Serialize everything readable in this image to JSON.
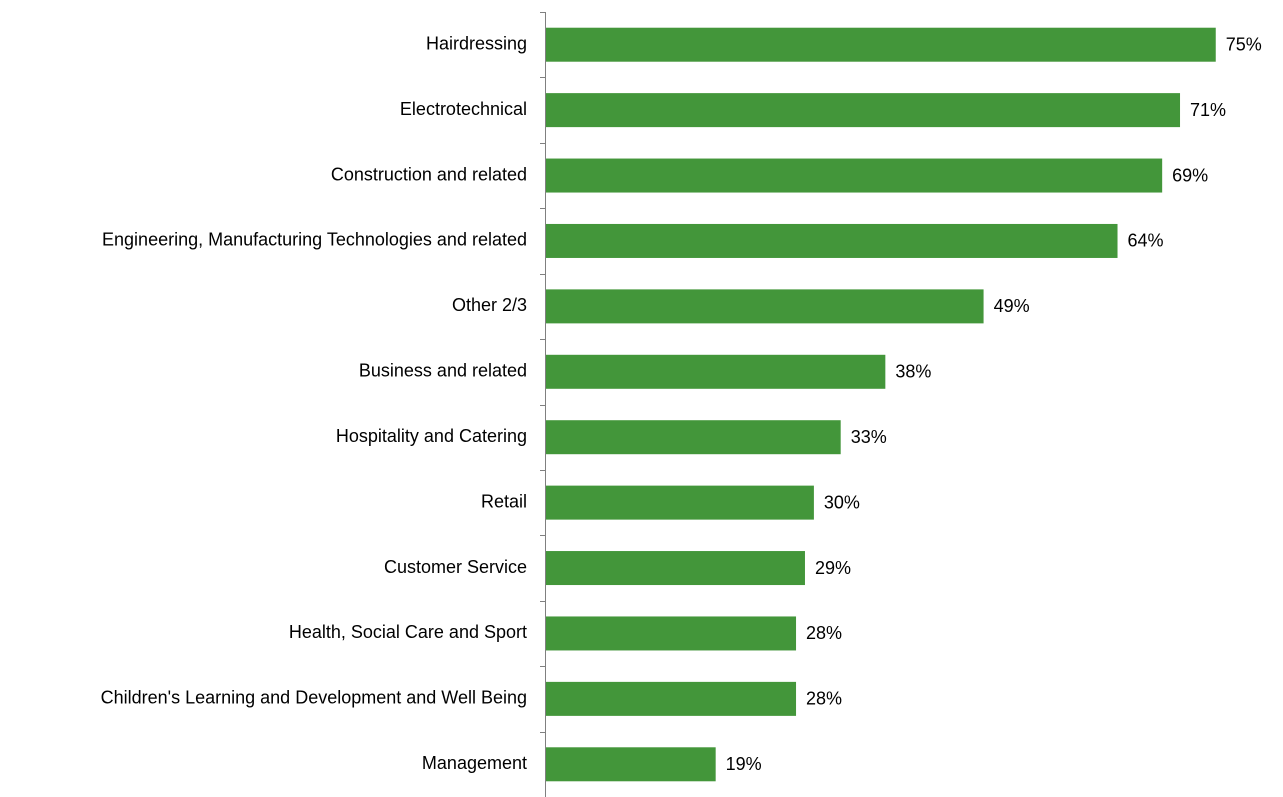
{
  "chart_data": {
    "type": "bar",
    "orientation": "horizontal",
    "categories": [
      "Hairdressing",
      "Electrotechnical",
      "Construction and related",
      "Engineering, Manufacturing Technologies and related",
      "Other 2/3",
      "Business and related",
      "Hospitality and Catering",
      "Retail",
      "Customer Service",
      "Health, Social Care and Sport",
      "Children's Learning and Development and Well Being",
      "Management"
    ],
    "values": [
      75,
      71,
      69,
      64,
      49,
      38,
      33,
      30,
      29,
      28,
      28,
      19
    ],
    "value_labels": [
      "75%",
      "71%",
      "69%",
      "64%",
      "49%",
      "38%",
      "33%",
      "30%",
      "29%",
      "28%",
      "28%",
      "19%"
    ],
    "color": "#43963a"
  }
}
